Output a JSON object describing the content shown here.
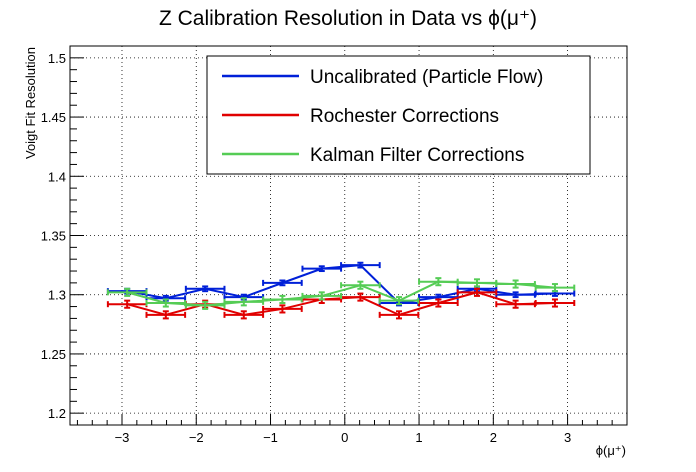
{
  "chart_data": {
    "type": "line",
    "title": "Z Calibration Resolution in Data vs ϕ(μ⁺)",
    "xlabel": "ϕ(μ⁺)",
    "ylabel": "Voigt Fit Resolution",
    "xlim": [
      -3.7,
      3.8
    ],
    "ylim": [
      1.19,
      1.51
    ],
    "grid": true,
    "legend_position": "top-right",
    "x_ticks": [
      -3,
      -2,
      -1,
      0,
      1,
      2,
      3
    ],
    "x_tick_labels": [
      "−3",
      "−2",
      "−1",
      "0",
      "1",
      "2",
      "3"
    ],
    "y_ticks": [
      1.2,
      1.25,
      1.3,
      1.35,
      1.4,
      1.45,
      1.5
    ],
    "y_tick_labels": [
      "1.2",
      "1.25",
      "1.3",
      "1.35",
      "1.4",
      "1.45",
      "1.5"
    ],
    "x": [
      -2.93,
      -2.41,
      -1.88,
      -1.36,
      -0.84,
      -0.31,
      0.21,
      0.73,
      1.26,
      1.78,
      2.3,
      2.83
    ],
    "x_err": 0.26,
    "series": [
      {
        "name": "Uncalibrated (Particle Flow)",
        "color": "#0020d8",
        "values": [
          1.303,
          1.297,
          1.305,
          1.298,
          1.31,
          1.322,
          1.325,
          1.293,
          1.298,
          1.305,
          1.3,
          1.301
        ],
        "errors": [
          0.002,
          0.002,
          0.002,
          0.002,
          0.002,
          0.002,
          0.002,
          0.002,
          0.002,
          0.002,
          0.002,
          0.002
        ]
      },
      {
        "name": "Rochester Corrections",
        "color": "#e00000",
        "values": [
          1.292,
          1.283,
          1.292,
          1.283,
          1.288,
          1.296,
          1.298,
          1.283,
          1.293,
          1.302,
          1.292,
          1.293
        ],
        "errors": [
          0.003,
          0.003,
          0.003,
          0.003,
          0.003,
          0.003,
          0.003,
          0.003,
          0.003,
          0.003,
          0.003,
          0.003
        ]
      },
      {
        "name": "Kalman Filter Corrections",
        "color": "#55cc55",
        "values": [
          1.302,
          1.293,
          1.291,
          1.294,
          1.296,
          1.299,
          1.308,
          1.295,
          1.311,
          1.31,
          1.309,
          1.306
        ],
        "errors": [
          0.003,
          0.003,
          0.003,
          0.003,
          0.003,
          0.003,
          0.003,
          0.003,
          0.003,
          0.003,
          0.003,
          0.003
        ]
      }
    ]
  }
}
